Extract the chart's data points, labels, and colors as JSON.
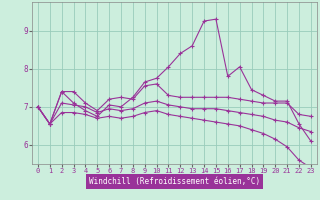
{
  "xlabel": "Windchill (Refroidissement éolien,°C)",
  "bg_color": "#cceedd",
  "grid_color": "#99ccbb",
  "line_color": "#993399",
  "xlabel_bg": "#993399",
  "xlabel_fg": "#ffffff",
  "lines": [
    {
      "x": [
        0,
        1,
        2,
        3,
        4,
        5,
        6,
        7,
        8,
        9,
        10,
        11,
        12,
        13,
        14,
        15,
        16,
        17,
        18,
        19,
        20,
        21,
        22,
        23
      ],
      "y": [
        7.0,
        6.55,
        7.4,
        7.1,
        6.9,
        6.75,
        7.05,
        7.0,
        7.25,
        7.65,
        7.75,
        8.05,
        8.4,
        8.6,
        9.25,
        9.3,
        7.8,
        8.05,
        7.45,
        7.3,
        7.15,
        7.15,
        6.55,
        6.1
      ]
    },
    {
      "x": [
        0,
        1,
        2,
        3,
        4,
        5,
        6,
        7,
        8,
        9,
        10,
        11,
        12,
        13,
        14,
        15,
        16,
        17,
        18,
        19,
        20,
        21,
        22,
        23
      ],
      "y": [
        7.0,
        6.55,
        7.4,
        7.4,
        7.1,
        6.9,
        7.2,
        7.25,
        7.2,
        7.55,
        7.6,
        7.3,
        7.25,
        7.25,
        7.25,
        7.25,
        7.25,
        7.2,
        7.15,
        7.1,
        7.1,
        7.1,
        6.8,
        6.75
      ]
    },
    {
      "x": [
        0,
        1,
        2,
        3,
        4,
        5,
        6,
        7,
        8,
        9,
        10,
        11,
        12,
        13,
        14,
        15,
        16,
        17,
        18,
        19,
        20,
        21,
        22,
        23
      ],
      "y": [
        7.0,
        6.55,
        7.1,
        7.05,
        7.0,
        6.85,
        6.95,
        6.9,
        6.95,
        7.1,
        7.15,
        7.05,
        7.0,
        6.95,
        6.95,
        6.95,
        6.9,
        6.85,
        6.8,
        6.75,
        6.65,
        6.6,
        6.45,
        6.35
      ]
    },
    {
      "x": [
        0,
        1,
        2,
        3,
        4,
        5,
        6,
        7,
        8,
        9,
        10,
        11,
        12,
        13,
        14,
        15,
        16,
        17,
        18,
        19,
        20,
        21,
        22,
        23
      ],
      "y": [
        7.0,
        6.55,
        6.85,
        6.85,
        6.8,
        6.7,
        6.75,
        6.7,
        6.75,
        6.85,
        6.9,
        6.8,
        6.75,
        6.7,
        6.65,
        6.6,
        6.55,
        6.5,
        6.4,
        6.3,
        6.15,
        5.95,
        5.6,
        5.4
      ]
    }
  ],
  "xlim": [
    -0.5,
    23.5
  ],
  "ylim": [
    5.5,
    9.75
  ],
  "yticks": [
    6,
    7,
    8,
    9
  ],
  "xticks": [
    0,
    1,
    2,
    3,
    4,
    5,
    6,
    7,
    8,
    9,
    10,
    11,
    12,
    13,
    14,
    15,
    16,
    17,
    18,
    19,
    20,
    21,
    22,
    23
  ]
}
